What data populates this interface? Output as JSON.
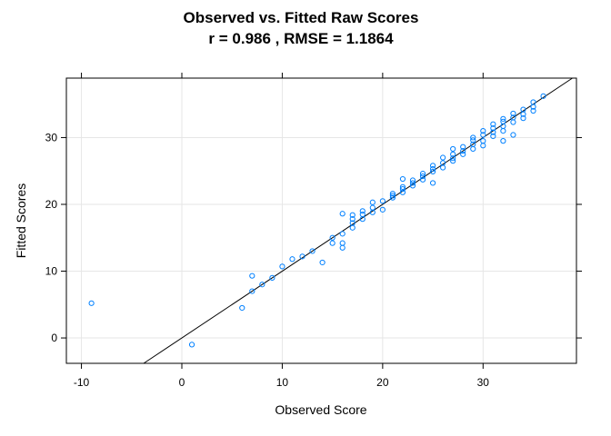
{
  "chart_data": {
    "type": "scatter",
    "title": "Observed vs. Fitted Raw Scores",
    "subtitle": "r =  0.986 , RMSE =  1.1864",
    "xlabel": "Observed Score",
    "ylabel": "Fitted Scores",
    "xlim": [
      -11.5,
      39.3
    ],
    "ylim": [
      -3.8,
      38.9
    ],
    "xticks": [
      -10,
      0,
      10,
      20,
      30
    ],
    "yticks": [
      0,
      10,
      20,
      30
    ],
    "grid": true,
    "reference_line": {
      "slope": 1,
      "intercept": 0
    },
    "point_color": "#0080ff",
    "line_color": "#000000",
    "grid_color": "#e6e6e6",
    "points": [
      [
        -9,
        5.2
      ],
      [
        1,
        -1.0
      ],
      [
        6,
        4.5
      ],
      [
        7,
        7.0
      ],
      [
        7,
        9.3
      ],
      [
        8,
        8.0
      ],
      [
        9,
        9.0
      ],
      [
        10,
        10.7
      ],
      [
        11,
        11.8
      ],
      [
        12,
        12.2
      ],
      [
        13,
        13.0
      ],
      [
        14,
        11.3
      ],
      [
        15,
        14.2
      ],
      [
        15,
        15.0
      ],
      [
        16,
        13.5
      ],
      [
        16,
        14.2
      ],
      [
        16,
        15.6
      ],
      [
        16,
        18.6
      ],
      [
        17,
        16.5
      ],
      [
        17,
        17.2
      ],
      [
        17,
        17.8
      ],
      [
        17,
        18.4
      ],
      [
        18,
        17.8
      ],
      [
        18,
        18.5
      ],
      [
        18,
        19.0
      ],
      [
        19,
        18.8
      ],
      [
        19,
        19.5
      ],
      [
        19,
        20.3
      ],
      [
        20,
        19.2
      ],
      [
        20,
        20.5
      ],
      [
        21,
        21.0
      ],
      [
        21,
        21.3
      ],
      [
        21,
        21.6
      ],
      [
        22,
        21.8
      ],
      [
        22,
        22.3
      ],
      [
        22,
        22.6
      ],
      [
        22,
        23.8
      ],
      [
        23,
        22.8
      ],
      [
        23,
        23.2
      ],
      [
        23,
        23.6
      ],
      [
        24,
        23.7
      ],
      [
        24,
        24.2
      ],
      [
        24,
        24.6
      ],
      [
        25,
        23.2
      ],
      [
        25,
        24.9
      ],
      [
        25,
        25.3
      ],
      [
        25,
        25.8
      ],
      [
        26,
        25.5
      ],
      [
        26,
        26.2
      ],
      [
        26,
        27.0
      ],
      [
        27,
        26.5
      ],
      [
        27,
        26.9
      ],
      [
        27,
        27.5
      ],
      [
        27,
        28.3
      ],
      [
        28,
        27.5
      ],
      [
        28,
        28.0
      ],
      [
        28,
        28.6
      ],
      [
        29,
        28.3
      ],
      [
        29,
        29.0
      ],
      [
        29,
        29.6
      ],
      [
        29,
        30.0
      ],
      [
        30,
        28.8
      ],
      [
        30,
        29.5
      ],
      [
        30,
        30.4
      ],
      [
        30,
        31.0
      ],
      [
        31,
        30.2
      ],
      [
        31,
        30.8
      ],
      [
        31,
        31.4
      ],
      [
        31,
        32.0
      ],
      [
        32,
        29.5
      ],
      [
        32,
        31.0
      ],
      [
        32,
        31.7
      ],
      [
        32,
        32.4
      ],
      [
        32,
        32.8
      ],
      [
        33,
        30.4
      ],
      [
        33,
        32.3
      ],
      [
        33,
        33.0
      ],
      [
        33,
        33.6
      ],
      [
        34,
        32.9
      ],
      [
        34,
        33.5
      ],
      [
        34,
        34.2
      ],
      [
        35,
        34.0
      ],
      [
        35,
        34.6
      ],
      [
        35,
        35.3
      ],
      [
        36,
        36.2
      ]
    ]
  }
}
